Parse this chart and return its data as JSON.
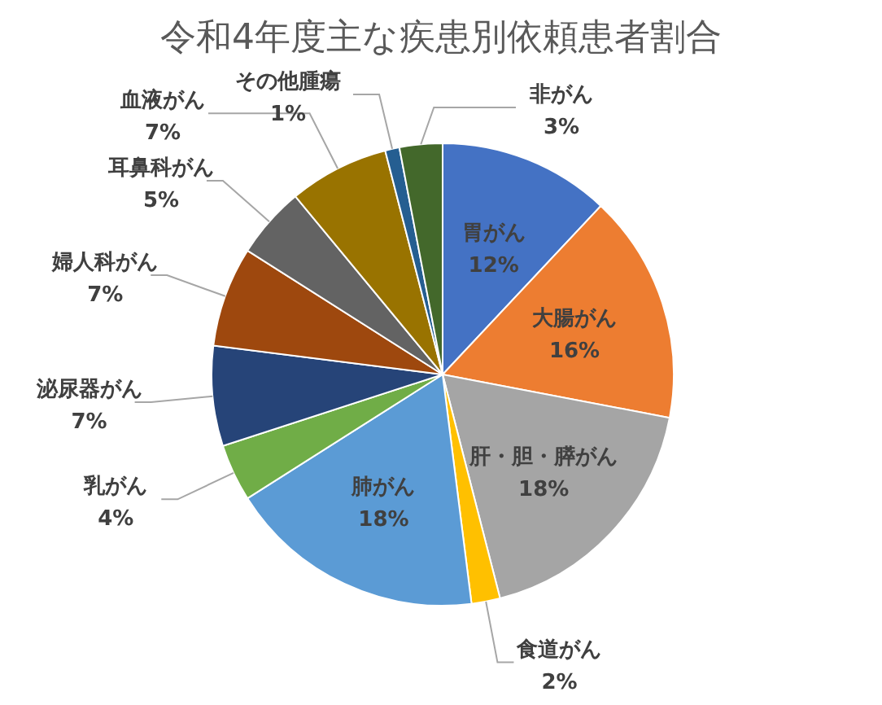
{
  "chart_data": {
    "type": "pie",
    "title": "令和4年度主な疾患別依頼患者割合",
    "categories": [
      "胃がん",
      "大腸がん",
      "肝・胆・膵がん",
      "食道がん",
      "肺がん",
      "乳がん",
      "泌尿器がん",
      "婦人科がん",
      "耳鼻科がん",
      "血液がん",
      "その他腫瘍",
      "非がん"
    ],
    "values": [
      12,
      16,
      18,
      2,
      18,
      4,
      7,
      7,
      5,
      7,
      1,
      3
    ],
    "value_labels": [
      "12%",
      "16%",
      "18%",
      "2%",
      "18%",
      "4%",
      "7%",
      "7%",
      "5%",
      "7%",
      "1%",
      "3%"
    ],
    "colors": [
      "#4472c4",
      "#ed7d31",
      "#a5a5a5",
      "#ffc000",
      "#5b9bd5",
      "#70ad47",
      "#264478",
      "#9e480e",
      "#636363",
      "#997300",
      "#255e91",
      "#43682b"
    ]
  }
}
